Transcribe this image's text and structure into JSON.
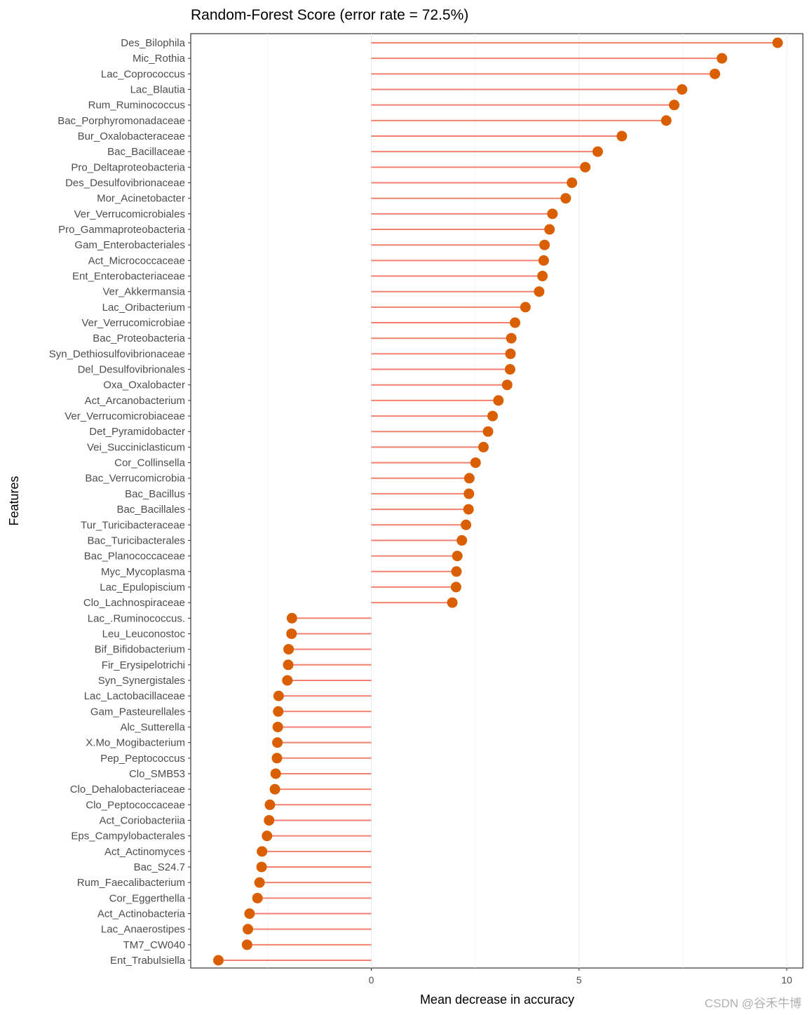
{
  "chart_data": {
    "type": "lollipop",
    "title": "Random-Forest Score (error rate = 72.5%)",
    "xlabel": "Mean decrease in accuracy",
    "ylabel": "Features",
    "xlim": [
      -4.3,
      10.4
    ],
    "xticks": [
      0,
      5,
      10
    ],
    "grid": true,
    "colors": {
      "segment": "#f08070",
      "point": "#d95f02"
    },
    "categories": [
      "Des_Bilophila",
      "Mic_Rothia",
      "Lac_Coprococcus",
      "Lac_Blautia",
      "Rum_Ruminococcus",
      "Bac_Porphyromonadaceae",
      "Bur_Oxalobacteraceae",
      "Bac_Bacillaceae",
      "Pro_Deltaproteobacteria",
      "Des_Desulfovibrionaceae",
      "Mor_Acinetobacter",
      "Ver_Verrucomicrobiales",
      "Pro_Gammaproteobacteria",
      "Gam_Enterobacteriales",
      "Act_Micrococcaceae",
      "Ent_Enterobacteriaceae",
      "Ver_Akkermansia",
      "Lac_Oribacterium",
      "Ver_Verrucomicrobiae",
      "Bac_Proteobacteria",
      "Syn_Dethiosulfovibrionaceae",
      "Del_Desulfovibrionales",
      "Oxa_Oxalobacter",
      "Act_Arcanobacterium",
      "Ver_Verrucomicrobiaceae",
      "Det_Pyramidobacter",
      "Vei_Succiniclasticum",
      "Cor_Collinsella",
      "Bac_Verrucomicrobia",
      "Bac_Bacillus",
      "Bac_Bacillales",
      "Tur_Turicibacteraceae",
      "Bac_Turicibacterales",
      "Bac_Planococcaceae",
      "Myc_Mycoplasma",
      "Lac_Epulopiscium",
      "Clo_Lachnospiraceae",
      "Lac_.Ruminococcus.",
      "Leu_Leuconostoc",
      "Bif_Bifidobacterium",
      "Fir_Erysipelotrichi",
      "Syn_Synergistales",
      "Lac_Lactobacillaceae",
      "Gam_Pasteurellales",
      "Alc_Sutterella",
      "X.Mo_Mogibacterium",
      "Pep_Peptococcus",
      "Clo_SMB53",
      "Clo_Dehalobacteriaceae",
      "Clo_Peptococcaceae",
      "Act_Coriobacteriia",
      "Eps_Campylobacterales",
      "Act_Actinomyces",
      "Bac_S24.7",
      "Rum_Faecalibacterium",
      "Cor_Eggerthella",
      "Act_Actinobacteria",
      "Lac_Anaerostipes",
      "TM7_CW040",
      "Ent_Trabulsiella"
    ],
    "values": [
      9.78,
      8.44,
      8.27,
      7.48,
      7.29,
      7.1,
      6.03,
      5.45,
      5.15,
      4.83,
      4.68,
      4.36,
      4.29,
      4.17,
      4.15,
      4.12,
      4.04,
      3.71,
      3.46,
      3.37,
      3.35,
      3.34,
      3.27,
      3.06,
      2.92,
      2.81,
      2.7,
      2.51,
      2.36,
      2.35,
      2.34,
      2.28,
      2.18,
      2.07,
      2.05,
      2.04,
      1.95,
      -1.91,
      -1.92,
      -1.99,
      -2.0,
      -2.02,
      -2.23,
      -2.24,
      -2.25,
      -2.26,
      -2.27,
      -2.3,
      -2.32,
      -2.44,
      -2.46,
      -2.51,
      -2.63,
      -2.64,
      -2.69,
      -2.74,
      -2.93,
      -2.97,
      -2.99,
      -3.68
    ]
  },
  "watermark": "CSDN @谷禾牛博"
}
